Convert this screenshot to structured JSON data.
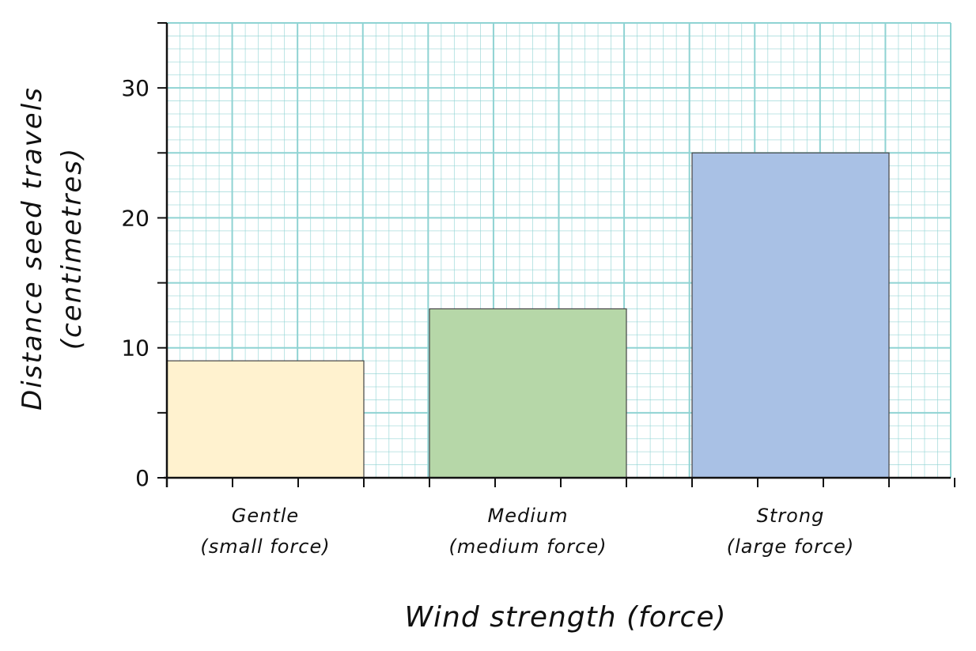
{
  "chart_data": {
    "type": "bar",
    "categories": [
      {
        "line1": "Gentle",
        "line2": "(small force)"
      },
      {
        "line1": "Medium",
        "line2": "(medium force)"
      },
      {
        "line1": "Strong",
        "line2": "(large force)"
      }
    ],
    "values": [
      9,
      13,
      25
    ],
    "bar_colors": [
      "#fff2cf",
      "#b6d7a8",
      "#a9c1e5"
    ],
    "xlabel": "Wind strength (force)",
    "ylabel_line1": "Distance seed travels",
    "ylabel_line2": "(centimetres)",
    "ylim": [
      0,
      35
    ],
    "yticks": [
      0,
      10,
      20,
      30
    ],
    "grid": true,
    "grid_color": "#8fd3d3"
  }
}
